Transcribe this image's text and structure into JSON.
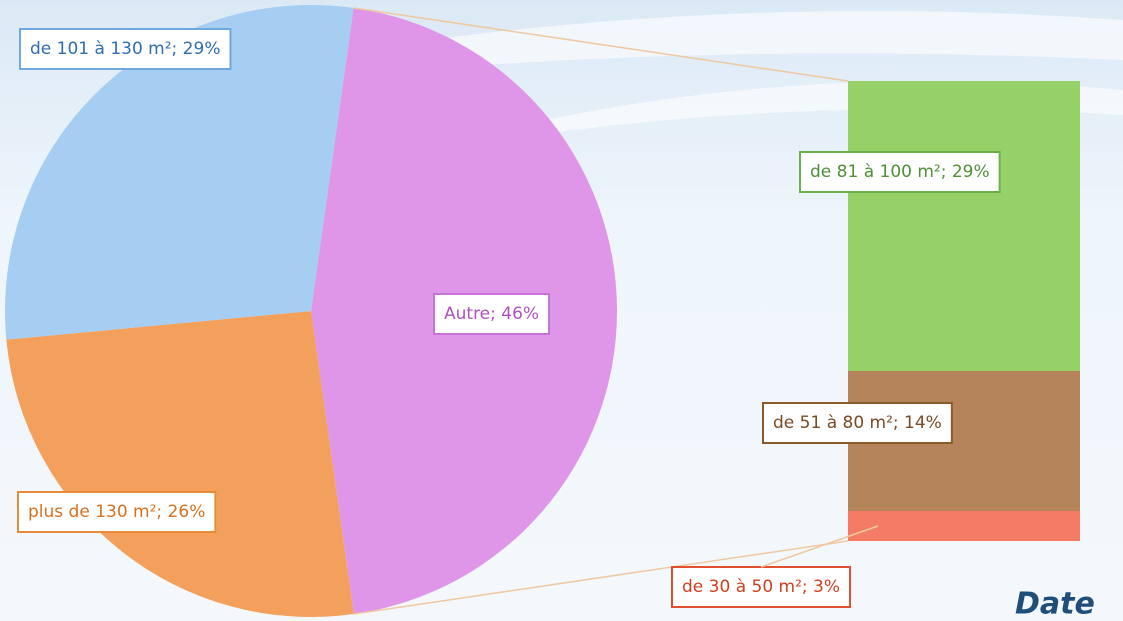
{
  "chart_data": {
    "type": "pie-of-bar",
    "values": [
      46,
      26,
      29
    ],
    "value_labels": [
      "Autre; 46%",
      "plus de 130 m²; 26%",
      "de 101 à 130 m²; 29%"
    ],
    "colors": [
      "#df95e8",
      "#f3a05d",
      "#a6cdf2"
    ],
    "secondary": {
      "type": "bar",
      "values": [
        29,
        14,
        3
      ],
      "value_labels": [
        "de 81 à 100 m²; 29%",
        "de 51 à 80 m²; 14%",
        "de 30 à 50 m²; 3%"
      ],
      "colors": [
        "#96d168",
        "#b5845a",
        "#f47c64"
      ]
    },
    "annotation": "Date"
  }
}
